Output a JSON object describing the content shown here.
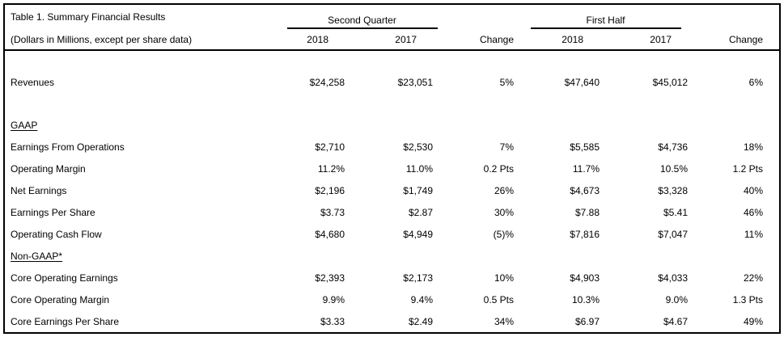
{
  "colors": {
    "text": "#000000",
    "background": "#ffffff",
    "border": "#000000"
  },
  "table": {
    "title": "Table 1. Summary Financial Results",
    "subtitle": "(Dollars in Millions, except per share data)",
    "groups": [
      {
        "label": "Second Quarter"
      },
      {
        "label": "First Half"
      }
    ],
    "col_headers": [
      "2018",
      "2017",
      "Change",
      "2018",
      "2017",
      "Change"
    ],
    "rows": [
      {
        "kind": "spacer"
      },
      {
        "kind": "data",
        "label": "Revenues",
        "values": [
          "$24,258",
          "$23,051",
          "5%",
          "$47,640",
          "$45,012",
          "6%"
        ]
      },
      {
        "kind": "spacer"
      },
      {
        "kind": "section",
        "label": "GAAP"
      },
      {
        "kind": "data",
        "label": "Earnings From Operations",
        "values": [
          "$2,710",
          "$2,530",
          "7%",
          "$5,585",
          "$4,736",
          "18%"
        ]
      },
      {
        "kind": "data",
        "label": "Operating Margin",
        "values": [
          "11.2%",
          "11.0%",
          "0.2 Pts",
          "11.7%",
          "10.5%",
          "1.2 Pts"
        ]
      },
      {
        "kind": "data",
        "label": "Net Earnings",
        "values": [
          "$2,196",
          "$1,749",
          "26%",
          "$4,673",
          "$3,328",
          "40%"
        ]
      },
      {
        "kind": "data",
        "label": "Earnings Per Share",
        "values": [
          "$3.73",
          "$2.87",
          "30%",
          "$7.88",
          "$5.41",
          "46%"
        ]
      },
      {
        "kind": "data",
        "label": "Operating Cash Flow",
        "values": [
          "$4,680",
          "$4,949",
          "(5)%",
          "$7,816",
          "$7,047",
          "11%"
        ]
      },
      {
        "kind": "section",
        "label": "Non-GAAP*"
      },
      {
        "kind": "data",
        "label": "Core Operating Earnings",
        "values": [
          "$2,393",
          "$2,173",
          "10%",
          "$4,903",
          "$4,033",
          "22%"
        ]
      },
      {
        "kind": "data",
        "label": "Core Operating Margin",
        "values": [
          "9.9%",
          "9.4%",
          "0.5 Pts",
          "10.3%",
          "9.0%",
          "1.3 Pts"
        ]
      },
      {
        "kind": "data",
        "label": "Core Earnings Per Share",
        "values": [
          "$3.33",
          "$2.49",
          "34%",
          "$6.97",
          "$4.67",
          "49%"
        ]
      }
    ]
  }
}
